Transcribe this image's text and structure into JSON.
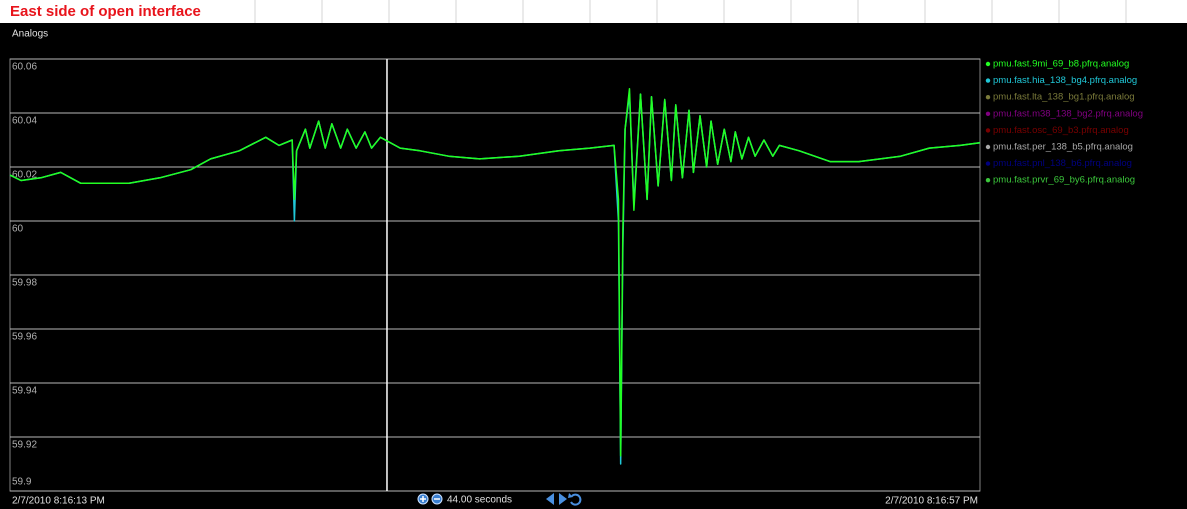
{
  "chart_data": {
    "type": "line",
    "title": "East side of open interface",
    "panel_label": "Analogs",
    "x_start_label": "2/7/2010 8:16:13 PM",
    "x_end_label": "2/7/2010 8:16:57 PM",
    "window_label": "44.00 seconds",
    "xlim": [
      0,
      44
    ],
    "ylim": [
      59.9,
      60.06
    ],
    "yticks": [
      60.06,
      60.04,
      60.02,
      60,
      59.98,
      59.96,
      59.94,
      59.92,
      59.9
    ],
    "grid": true,
    "cursor_x": 17.1,
    "legend": "right",
    "x": [
      0,
      0.5,
      1.4,
      2.3,
      3.2,
      4.1,
      5.4,
      6.8,
      8.2,
      9.1,
      10.4,
      11.6,
      12.2,
      12.8,
      12.9,
      13.0,
      13.4,
      13.6,
      14.0,
      14.3,
      14.6,
      15.0,
      15.3,
      15.7,
      16.1,
      16.4,
      16.8,
      17.7,
      18.6,
      19.9,
      21.3,
      23.1,
      24.9,
      26.3,
      27.4,
      27.6,
      27.7,
      27.8,
      27.9,
      28.1,
      28.3,
      28.6,
      28.9,
      29.1,
      29.4,
      29.7,
      30.0,
      30.2,
      30.5,
      30.8,
      31.0,
      31.3,
      31.6,
      31.8,
      32.1,
      32.4,
      32.7,
      32.9,
      33.2,
      33.5,
      33.8,
      34.2,
      34.6,
      34.9,
      35.8,
      37.2,
      38.5,
      40.4,
      41.7,
      43.1,
      44
    ],
    "series": [
      {
        "name": "pmu.fast.9mi_69_b8.pfrq.analog",
        "color": "#22ff22",
        "values": [
          60.017,
          60.015,
          60.016,
          60.018,
          60.014,
          60.014,
          60.014,
          60.016,
          60.019,
          60.023,
          60.026,
          60.031,
          60.028,
          60.03,
          60.008,
          60.026,
          60.034,
          60.027,
          60.037,
          60.027,
          60.036,
          60.027,
          60.034,
          60.027,
          60.033,
          60.027,
          60.031,
          60.027,
          60.026,
          60.024,
          60.023,
          60.024,
          60.026,
          60.027,
          60.028,
          60.008,
          59.913,
          59.997,
          60.034,
          60.049,
          60.004,
          60.047,
          60.008,
          60.046,
          60.013,
          60.045,
          60.015,
          60.043,
          60.016,
          60.041,
          60.018,
          60.039,
          60.02,
          60.037,
          60.021,
          60.034,
          60.022,
          60.033,
          60.023,
          60.031,
          60.024,
          60.03,
          60.024,
          60.028,
          60.026,
          60.022,
          60.022,
          60.024,
          60.027,
          60.028,
          60.029
        ]
      },
      {
        "name": "pmu.fast.hia_138_bg4.pfrq.analog",
        "color": "#20c8d8",
        "values": [
          60.017,
          60.015,
          60.016,
          60.018,
          60.014,
          60.014,
          60.014,
          60.016,
          60.019,
          60.023,
          60.026,
          60.031,
          60.028,
          60.03,
          60.0,
          60.026,
          60.034,
          60.027,
          60.037,
          60.027,
          60.036,
          60.027,
          60.034,
          60.027,
          60.033,
          60.027,
          60.031,
          60.027,
          60.026,
          60.024,
          60.023,
          60.024,
          60.026,
          60.027,
          60.028,
          60.0,
          59.91,
          59.99,
          60.034,
          60.047,
          60.006,
          60.047,
          60.008,
          60.046,
          60.013,
          60.045,
          60.015,
          60.043,
          60.016,
          60.041,
          60.018,
          60.039,
          60.02,
          60.037,
          60.021,
          60.034,
          60.022,
          60.033,
          60.023,
          60.031,
          60.024,
          60.03,
          60.024,
          60.028,
          60.026,
          60.022,
          60.022,
          60.024,
          60.027,
          60.028,
          60.029
        ]
      },
      {
        "name": "pmu.fast.lta_138_bg1.pfrq.analog",
        "color": "#7a7a3a"
      },
      {
        "name": "pmu.fast.m38_138_bg2.pfrq.analog",
        "color": "#800080"
      },
      {
        "name": "pmu.fast.osc_69_b3.pfrq.analog",
        "color": "#7a0000"
      },
      {
        "name": "pmu.fast.per_138_b5.pfrq.analog",
        "color": "#a8a8a8"
      },
      {
        "name": "pmu.fast.pnl_138_b6.pfrq.analog",
        "color": "#000080"
      },
      {
        "name": "pmu.fast.prvr_69_by6.pfrq.analog",
        "color": "#3cc83c"
      }
    ]
  }
}
